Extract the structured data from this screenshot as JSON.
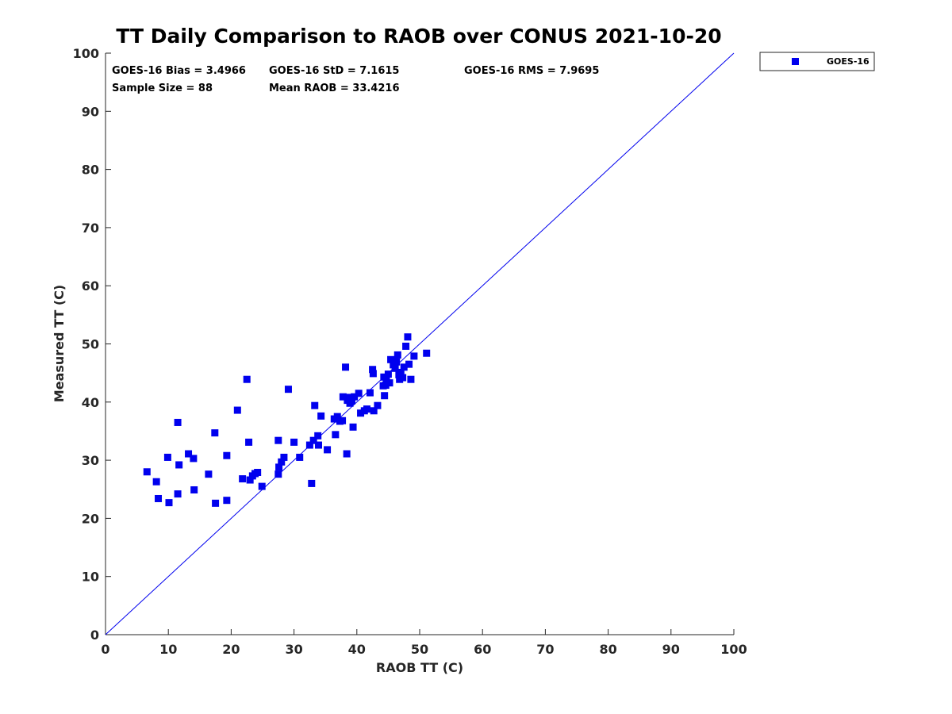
{
  "chart_data": {
    "type": "scatter",
    "title": "TT Daily Comparison to RAOB over CONUS 2021-10-20",
    "xlabel": "RAOB TT (C)",
    "ylabel": "Measured TT (C)",
    "xlim": [
      0,
      100
    ],
    "ylim": [
      0,
      100
    ],
    "xticks": [
      0,
      10,
      20,
      30,
      40,
      50,
      60,
      70,
      80,
      90,
      100
    ],
    "yticks": [
      0,
      10,
      20,
      30,
      40,
      50,
      60,
      70,
      80,
      90,
      100
    ],
    "grid": false,
    "legend_position": "outside-top-right",
    "marker_color": "#0000ee",
    "line_color": "#0000ee",
    "reference_line": {
      "from": [
        0,
        0
      ],
      "to": [
        100,
        100
      ]
    },
    "stats": [
      {
        "text": "GOES-16 Bias = 3.4966"
      },
      {
        "text": "GOES-16 StD = 7.1615"
      },
      {
        "text": "GOES-16 RMS = 7.9695"
      },
      {
        "text": "Sample Size = 88"
      },
      {
        "text": "Mean RAOB = 33.4216"
      }
    ],
    "series": [
      {
        "name": "GOES-16",
        "points": [
          [
            6.6,
            28.0
          ],
          [
            8.1,
            26.3
          ],
          [
            8.4,
            23.4
          ],
          [
            9.9,
            30.5
          ],
          [
            10.1,
            22.7
          ],
          [
            11.5,
            24.2
          ],
          [
            11.5,
            36.5
          ],
          [
            11.7,
            29.2
          ],
          [
            13.2,
            31.1
          ],
          [
            14.0,
            30.3
          ],
          [
            14.1,
            24.9
          ],
          [
            16.4,
            27.6
          ],
          [
            17.4,
            34.7
          ],
          [
            17.5,
            22.6
          ],
          [
            19.3,
            23.1
          ],
          [
            19.3,
            30.8
          ],
          [
            21.0,
            38.6
          ],
          [
            21.8,
            26.8
          ],
          [
            22.5,
            43.9
          ],
          [
            22.8,
            33.1
          ],
          [
            23.0,
            26.6
          ],
          [
            23.4,
            27.3
          ],
          [
            23.8,
            27.7
          ],
          [
            24.2,
            27.9
          ],
          [
            24.9,
            25.5
          ],
          [
            27.5,
            33.4
          ],
          [
            27.5,
            27.6
          ],
          [
            27.6,
            28.8
          ],
          [
            28.0,
            29.7
          ],
          [
            28.4,
            30.5
          ],
          [
            29.1,
            42.2
          ],
          [
            30.0,
            33.1
          ],
          [
            30.9,
            30.5
          ],
          [
            32.5,
            32.6
          ],
          [
            32.8,
            26.0
          ],
          [
            33.1,
            33.4
          ],
          [
            33.3,
            39.4
          ],
          [
            33.8,
            34.2
          ],
          [
            33.9,
            32.6
          ],
          [
            34.3,
            37.6
          ],
          [
            35.3,
            31.8
          ],
          [
            36.4,
            37.1
          ],
          [
            36.6,
            34.4
          ],
          [
            36.9,
            37.5
          ],
          [
            37.3,
            36.7
          ],
          [
            37.7,
            36.8
          ],
          [
            37.8,
            40.9
          ],
          [
            38.2,
            46.0
          ],
          [
            38.4,
            31.1
          ],
          [
            38.5,
            40.3
          ],
          [
            38.8,
            40.8
          ],
          [
            38.9,
            39.8
          ],
          [
            39.2,
            40.2
          ],
          [
            39.4,
            35.7
          ],
          [
            39.6,
            40.9
          ],
          [
            40.3,
            41.5
          ],
          [
            40.6,
            38.1
          ],
          [
            41.2,
            38.5
          ],
          [
            41.6,
            38.8
          ],
          [
            42.1,
            41.6
          ],
          [
            42.5,
            45.6
          ],
          [
            42.6,
            44.9
          ],
          [
            42.7,
            38.5
          ],
          [
            43.3,
            39.4
          ],
          [
            44.2,
            42.8
          ],
          [
            44.3,
            44.3
          ],
          [
            44.4,
            41.1
          ],
          [
            44.6,
            42.9
          ],
          [
            45.0,
            44.8
          ],
          [
            45.2,
            43.3
          ],
          [
            45.4,
            47.3
          ],
          [
            45.8,
            46.4
          ],
          [
            46.1,
            45.8
          ],
          [
            46.3,
            46.9
          ],
          [
            46.5,
            48.1
          ],
          [
            46.7,
            44.7
          ],
          [
            46.8,
            43.9
          ],
          [
            47.0,
            45.1
          ],
          [
            47.3,
            44.2
          ],
          [
            47.5,
            46.0
          ],
          [
            47.8,
            49.6
          ],
          [
            48.1,
            51.2
          ],
          [
            48.3,
            46.5
          ],
          [
            48.6,
            43.9
          ],
          [
            49.1,
            47.9
          ],
          [
            51.1,
            48.4
          ],
          [
            46.0,
            47.0
          ],
          [
            44.7,
            44.0
          ]
        ]
      }
    ]
  }
}
